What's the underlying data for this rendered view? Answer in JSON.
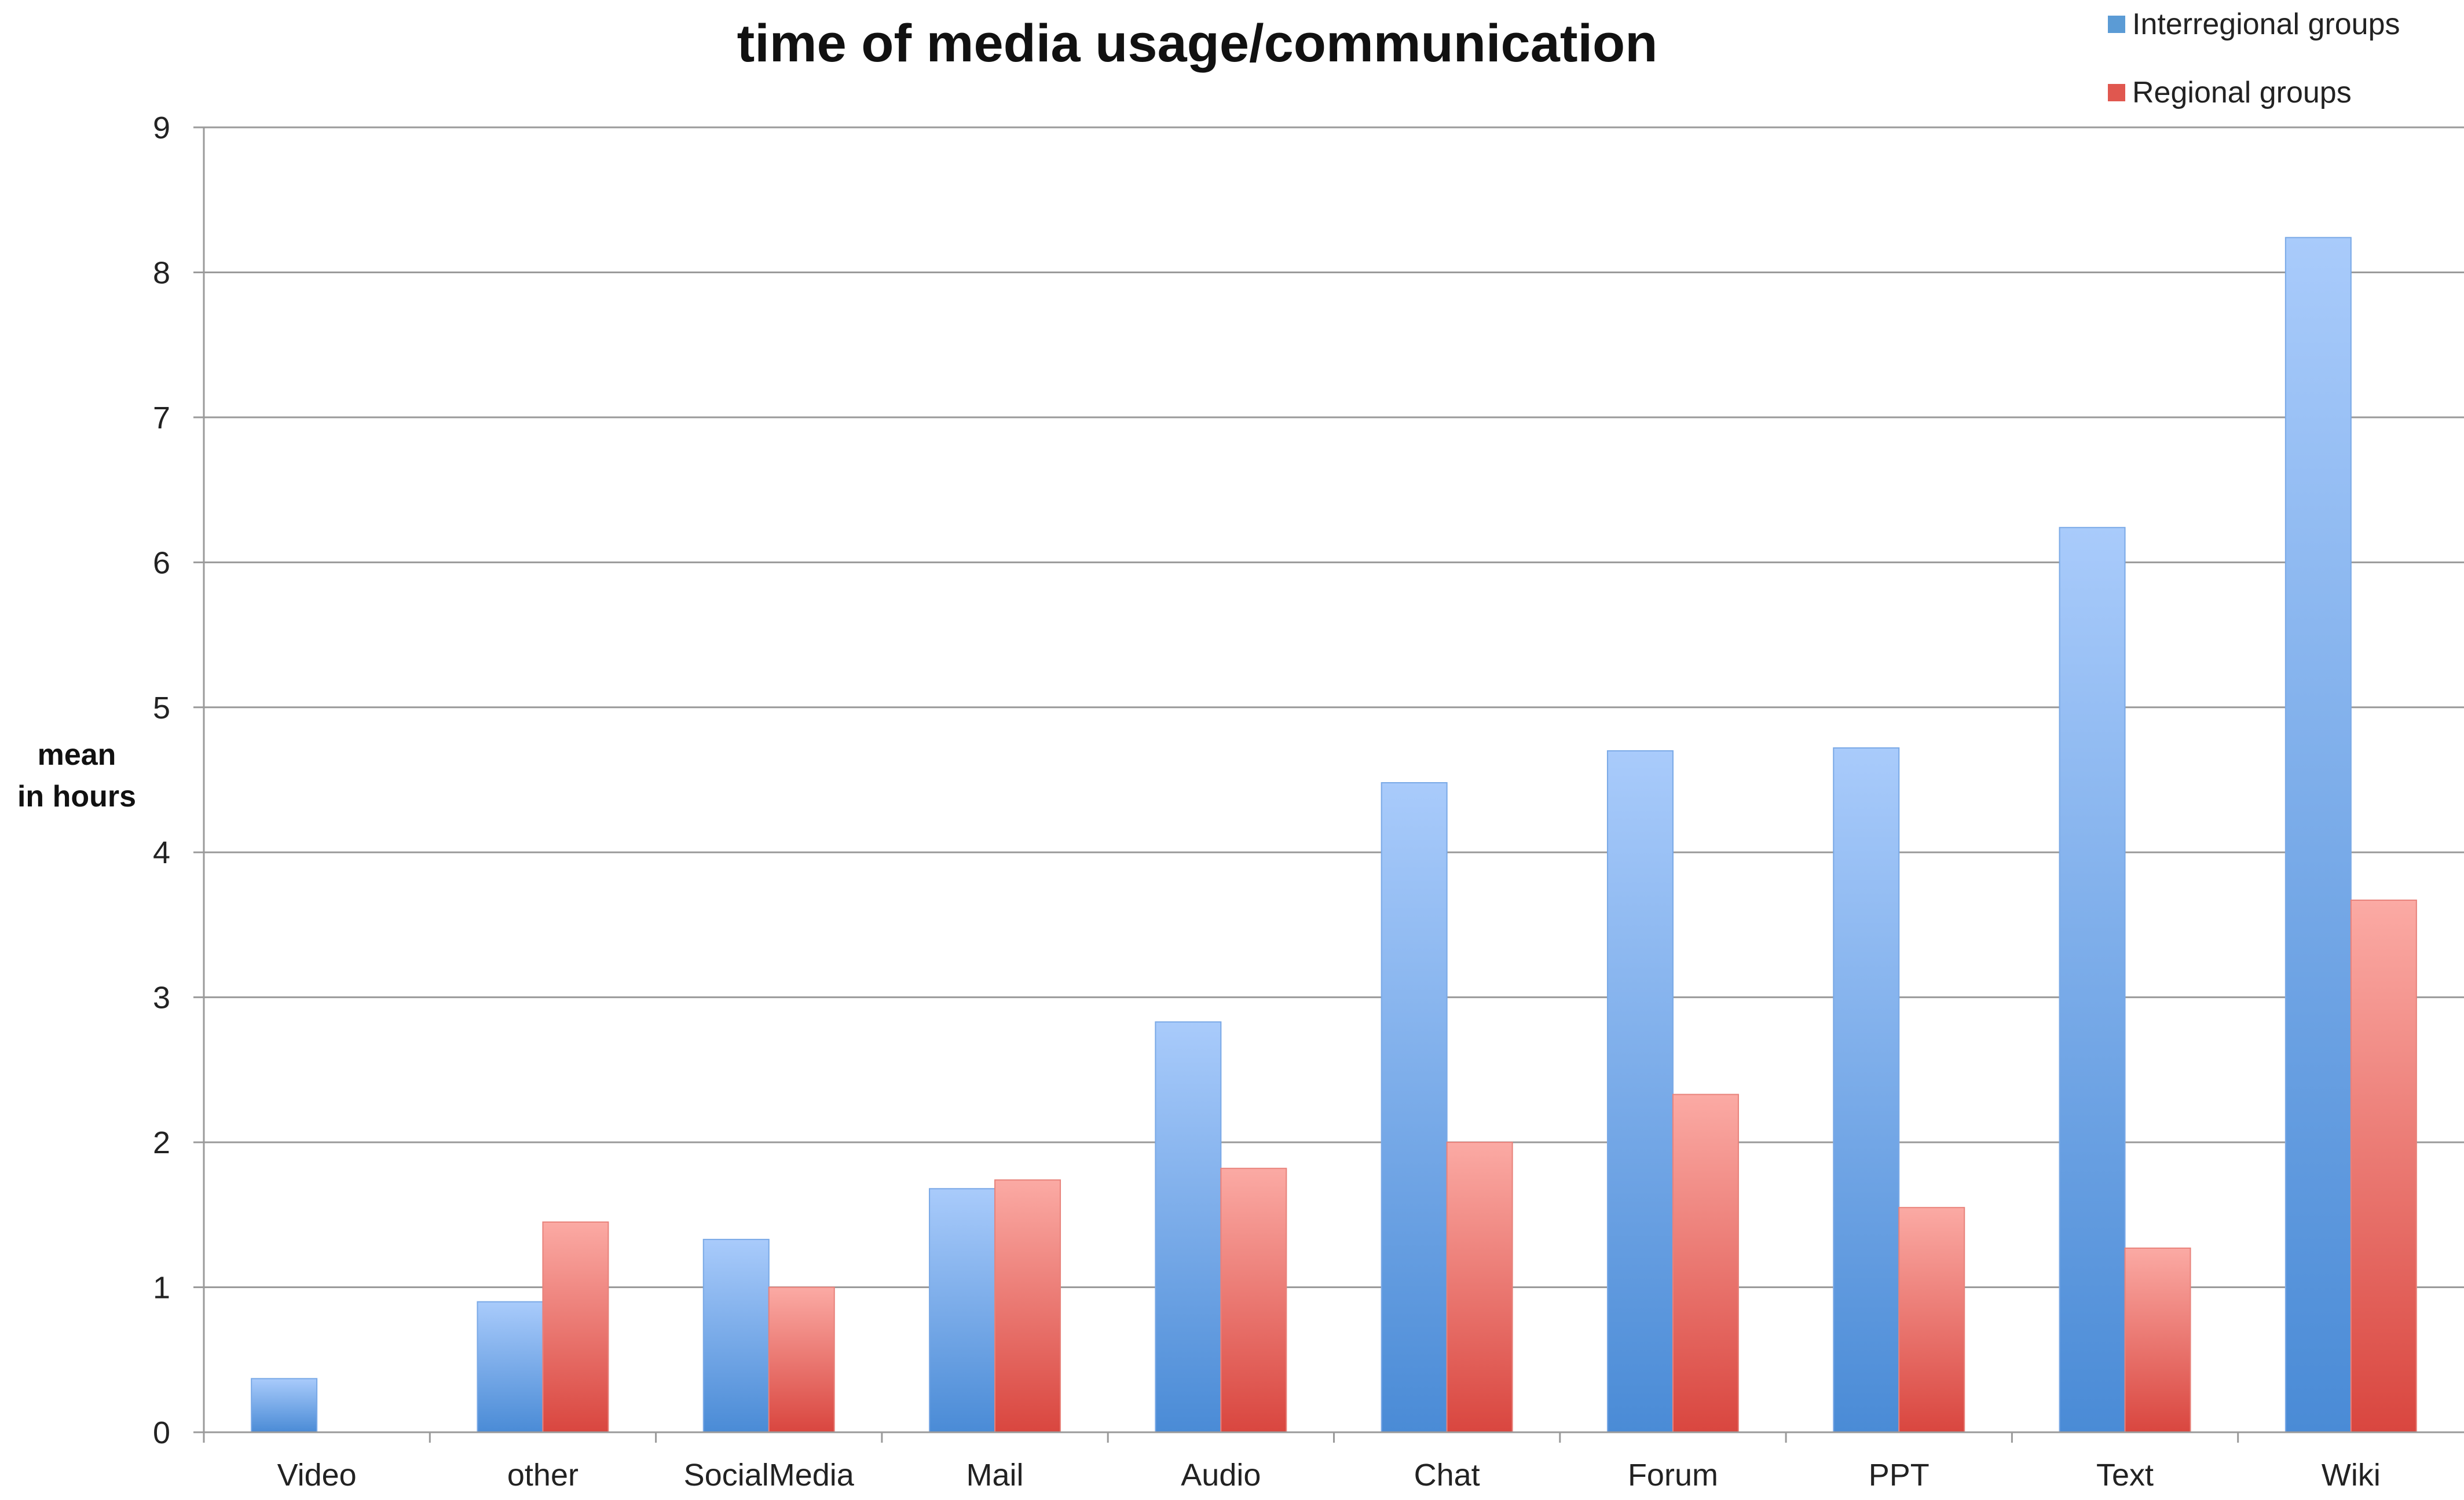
{
  "chart_data": {
    "type": "bar",
    "title": "time of media usage/communication",
    "ylabel_lines": [
      "mean",
      "in hours"
    ],
    "xlabel": "",
    "categories": [
      "Video",
      "other",
      "SocialMedia",
      "Mail",
      "Audio",
      "Chat",
      "Forum",
      "PPT",
      "Text",
      "Wiki"
    ],
    "series": [
      {
        "name": "Interregional groups",
        "color": "#5b9bd5",
        "values": [
          0.37,
          0.9,
          1.33,
          1.68,
          2.83,
          4.48,
          4.7,
          4.72,
          6.24,
          8.24
        ]
      },
      {
        "name": "Regional groups",
        "color": "#e0574f",
        "values": [
          0,
          1.45,
          1.0,
          1.74,
          1.82,
          2.0,
          2.33,
          1.55,
          1.27,
          3.67
        ]
      }
    ],
    "ylim": [
      0,
      9
    ],
    "yticks": [
      0,
      1,
      2,
      3,
      4,
      5,
      6,
      7,
      8,
      9
    ],
    "grid": true,
    "legend_position": "top-right"
  }
}
